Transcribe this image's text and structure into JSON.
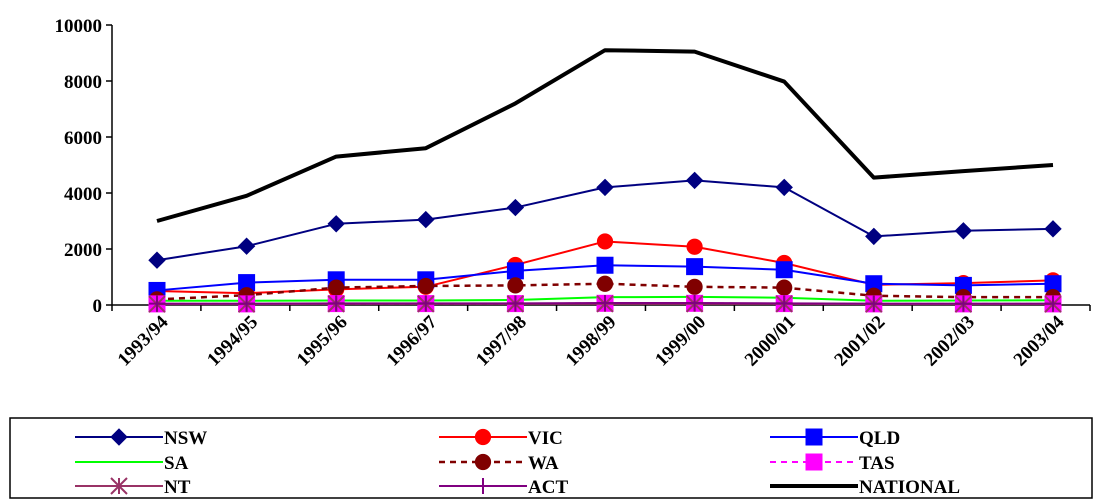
{
  "chart_data": {
    "type": "line",
    "title": "",
    "xlabel": "",
    "ylabel": "",
    "ylim": [
      0,
      10000
    ],
    "yticks": [
      0,
      2000,
      4000,
      6000,
      8000,
      10000
    ],
    "grid": false,
    "legend_position": "bottom",
    "categories": [
      "1993/94",
      "1994/95",
      "1995/96",
      "1996/97",
      "1997/98",
      "1998/99",
      "1999/00",
      "2000/01",
      "2001/02",
      "2002/03",
      "2003/04"
    ],
    "series": [
      {
        "name": "NSW",
        "color": "#000080",
        "marker": "diamond",
        "dash": "solid",
        "width": 2,
        "values": [
          1600,
          2100,
          2900,
          3050,
          3480,
          4200,
          4450,
          4200,
          2450,
          2650,
          2720
        ]
      },
      {
        "name": "VIC",
        "color": "#ff0000",
        "marker": "circle",
        "dash": "solid",
        "width": 2,
        "values": [
          500,
          420,
          560,
          650,
          1430,
          2270,
          2080,
          1500,
          720,
          780,
          880
        ]
      },
      {
        "name": "QLD",
        "color": "#0000ff",
        "marker": "square",
        "dash": "solid",
        "width": 2,
        "values": [
          520,
          800,
          900,
          900,
          1220,
          1420,
          1370,
          1260,
          760,
          700,
          760
        ]
      },
      {
        "name": "SA",
        "color": "#00ff00",
        "marker": "none",
        "dash": "solid",
        "width": 2,
        "values": [
          150,
          150,
          160,
          160,
          180,
          280,
          290,
          260,
          150,
          160,
          170
        ]
      },
      {
        "name": "WA",
        "color": "#800000",
        "marker": "circle",
        "dash": "dash",
        "width": 2.5,
        "values": [
          200,
          350,
          620,
          680,
          700,
          760,
          650,
          620,
          330,
          280,
          280
        ]
      },
      {
        "name": "TAS",
        "color": "#ff00ff",
        "marker": "square",
        "dash": "dash",
        "width": 2,
        "values": [
          40,
          40,
          50,
          50,
          50,
          60,
          60,
          50,
          40,
          40,
          40
        ]
      },
      {
        "name": "NT",
        "color": "#993366",
        "marker": "star",
        "dash": "solid",
        "width": 2,
        "values": [
          30,
          30,
          40,
          40,
          40,
          40,
          40,
          40,
          30,
          30,
          30
        ]
      },
      {
        "name": "ACT",
        "color": "#800080",
        "marker": "plus",
        "dash": "solid",
        "width": 2,
        "values": [
          50,
          50,
          60,
          60,
          60,
          70,
          70,
          60,
          50,
          50,
          50
        ]
      },
      {
        "name": "NATIONAL",
        "color": "#000000",
        "marker": "none",
        "dash": "solid",
        "width": 4,
        "values": [
          3000,
          3900,
          5300,
          5600,
          7200,
          9100,
          9050,
          7980,
          4550,
          4780,
          5000
        ]
      }
    ]
  }
}
